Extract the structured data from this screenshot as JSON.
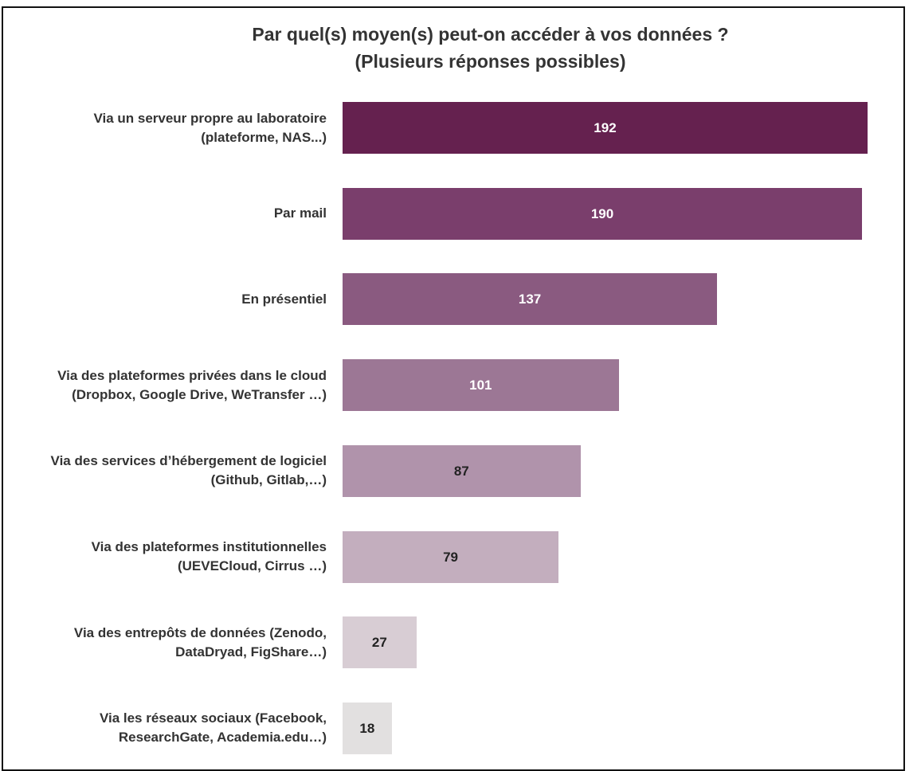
{
  "chart_data": {
    "type": "barh",
    "title": "Par quel(s) moyen(s) peut-on accéder à vos données ?",
    "subtitle": "(Plusieurs réponses possibles)",
    "categories": [
      "Via un serveur propre au laboratoire (plateforme, NAS...)",
      "Par mail",
      "En présentiel",
      "Via des plateformes privées dans le cloud (Dropbox, Google Drive, WeTransfer …)",
      "Via des services d’hébergement de logiciel (Github, Gitlab,…)",
      "Via des plateformes institutionnelles (UEVECloud, Cirrus …)",
      "Via des entrepôts de données (Zenodo, DataDryad, FigShare…)",
      "Via les réseaux sociaux (Facebook, ResearchGate, Academia.edu…)"
    ],
    "values": [
      192,
      190,
      137,
      101,
      87,
      79,
      27,
      18
    ],
    "colors": [
      "#65214f",
      "#7a3e6c",
      "#8a5a80",
      "#9c7795",
      "#b093ab",
      "#c3aebe",
      "#d8cdd4",
      "#e2e0e0"
    ]
  }
}
